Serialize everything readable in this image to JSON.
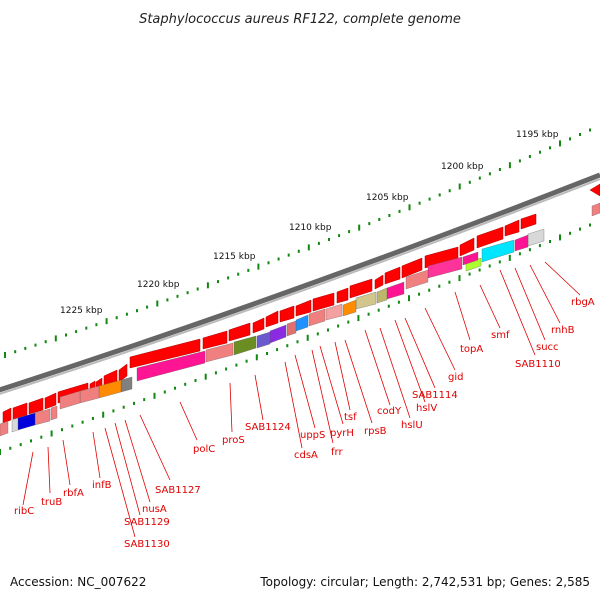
{
  "title": "Staphylococcus aureus RF122, complete genome",
  "footer": {
    "accession": "Accession: NC_007622",
    "topology": "Topology: circular; Length: 2,742,531 bp; Genes: 2,585"
  },
  "colors": {
    "gene": "#ff0000",
    "label": "#e00000",
    "backbone": "#888888",
    "tick": "#118811"
  },
  "ticks": [
    "1195 kbp",
    "1200 kbp",
    "1205 kbp",
    "1210 kbp",
    "1215 kbp",
    "1220 kbp",
    "1225 kbp"
  ],
  "genes": [
    "rbgA",
    "rnhB",
    "succ",
    "SAB1110",
    "smf",
    "topA",
    "gid",
    "SAB1114",
    "hslV",
    "hslU",
    "codY",
    "rpsB",
    "tsf",
    "pyrH",
    "frr",
    "uppS",
    "cdsA",
    "SAB1124",
    "proS",
    "polC",
    "SAB1127",
    "nusA",
    "SAB1129",
    "SAB1130",
    "infB",
    "rbfA",
    "truB",
    "ribC"
  ]
}
